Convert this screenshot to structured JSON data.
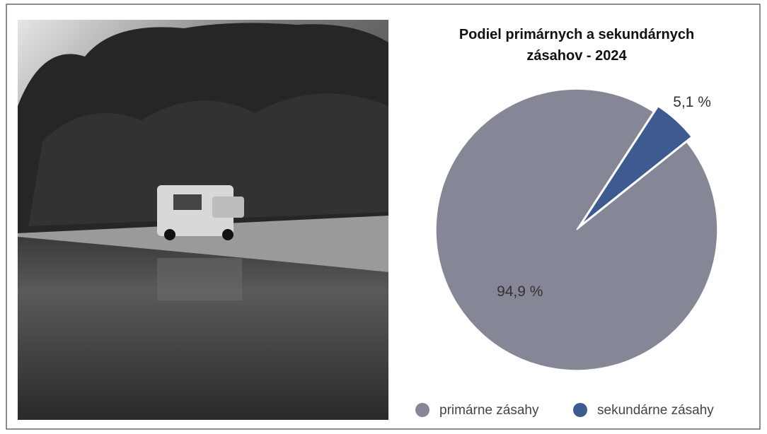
{
  "chart_data": {
    "type": "pie",
    "title": "Podiel primárnych a sekundárnych zásahov - 2024",
    "categories": [
      "primárne zásahy",
      "sekundárne zásahy"
    ],
    "values": [
      94.9,
      5.1
    ],
    "value_labels": [
      "94,9 %",
      "5,1 %"
    ],
    "colors": [
      "#868796",
      "#3d5a91"
    ],
    "legend": "bottom"
  }
}
